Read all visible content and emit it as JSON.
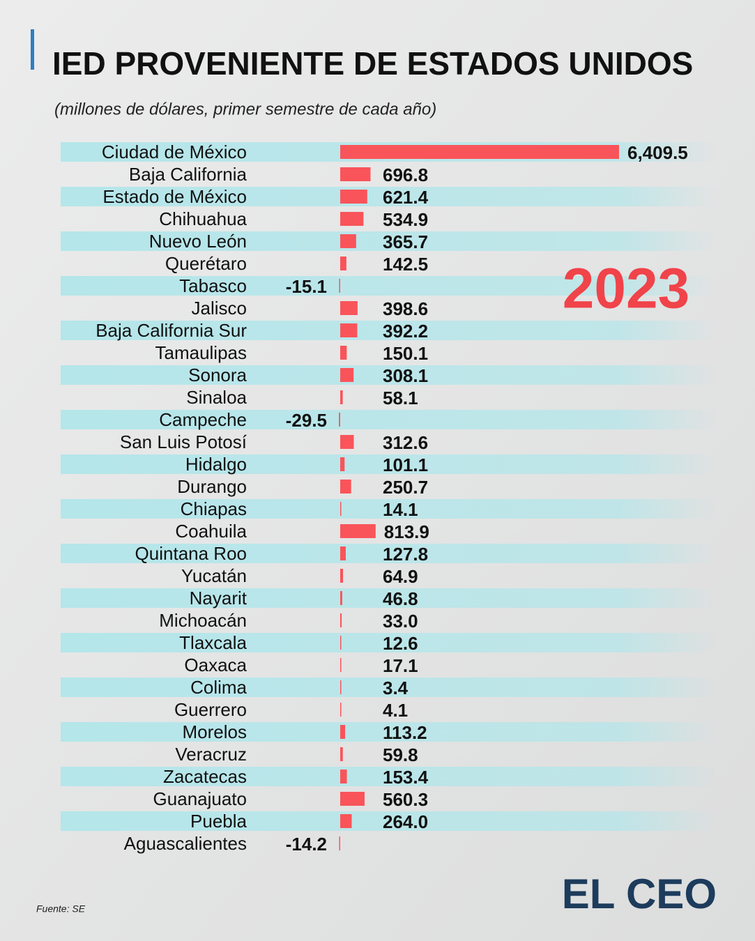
{
  "chart_data": {
    "type": "bar",
    "orientation": "horizontal",
    "title": "IED PROVENIENTE DE ESTADOS UNIDOS",
    "subtitle": "(millones de dólares, primer semestre de cada año)",
    "annotation": "2023",
    "source": "Fuente: SE",
    "logo": "EL CEO",
    "color": "#f9545a",
    "categories": [
      "Ciudad de México",
      "Baja California",
      "Estado de México",
      "Chihuahua",
      "Nuevo León",
      "Querétaro",
      "Tabasco",
      "Jalisco",
      "Baja California Sur",
      "Tamaulipas",
      "Sonora",
      "Sinaloa",
      "Campeche",
      "San Luis Potosí",
      "Hidalgo",
      "Durango",
      "Chiapas",
      "Coahuila",
      "Quintana Roo",
      "Yucatán",
      "Nayarit",
      "Michoacán",
      "Tlaxcala",
      "Oaxaca",
      "Colima",
      "Guerrero",
      "Morelos",
      "Veracruz",
      "Zacatecas",
      "Guanajuato",
      "Puebla",
      "Aguascalientes"
    ],
    "values": [
      6409.5,
      696.8,
      621.4,
      534.9,
      365.7,
      142.5,
      -15.1,
      398.6,
      392.2,
      150.1,
      308.1,
      58.1,
      -29.5,
      312.6,
      101.1,
      250.7,
      14.1,
      813.9,
      127.8,
      64.9,
      46.8,
      33.0,
      12.6,
      17.1,
      3.4,
      4.1,
      113.2,
      59.8,
      153.4,
      560.3,
      264.0,
      -14.2
    ],
    "value_labels": [
      "6,409.5",
      "696.8",
      "621.4",
      "534.9",
      "365.7",
      "142.5",
      "-15.1",
      "398.6",
      "392.2",
      "150.1",
      "308.1",
      "58.1",
      "-29.5",
      "312.6",
      "101.1",
      "250.7",
      "14.1",
      "813.9",
      "127.8",
      "64.9",
      "46.8",
      "33.0",
      "12.6",
      "17.1",
      "3.4",
      "4.1",
      "113.2",
      "59.8",
      "153.4",
      "560.3",
      "264.0",
      "-14.2"
    ]
  }
}
